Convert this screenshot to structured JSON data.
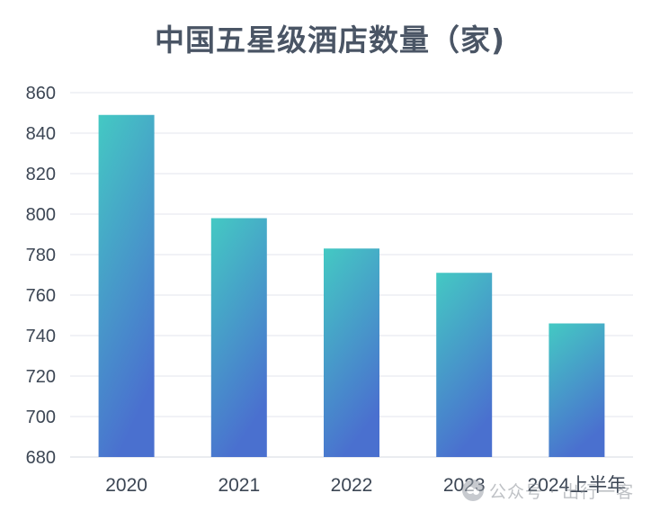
{
  "chart_data": {
    "type": "bar",
    "title": "中国五星级酒店数量（家)",
    "categories": [
      "2020",
      "2021",
      "2022",
      "2023",
      "2024上半年"
    ],
    "values": [
      849,
      798,
      783,
      771,
      746
    ],
    "xlabel": "",
    "ylabel": "",
    "ylim": [
      680,
      860
    ],
    "yticks": [
      680,
      700,
      720,
      740,
      760,
      780,
      800,
      820,
      840,
      860
    ],
    "grid": true,
    "bar_gradient": {
      "top": "#44c9c3",
      "bottom": "#4a70cf"
    }
  },
  "watermark": {
    "icon": "wechat-icon",
    "text": "公众号 · 出行一客"
  },
  "colors": {
    "title": "#4a5565",
    "tick": "#3c4654",
    "grid": "#e3e6ec"
  }
}
